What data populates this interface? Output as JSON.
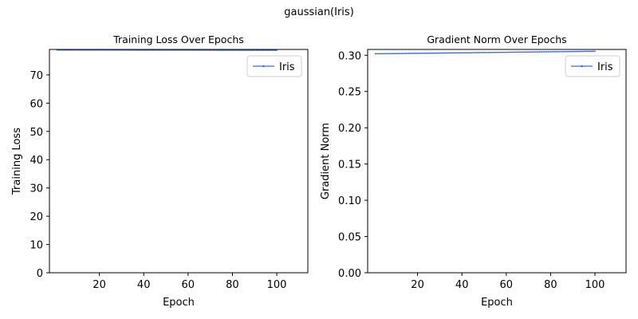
{
  "suptitle": "gaussian(Iris)",
  "chart_data": [
    {
      "type": "line",
      "title": "Training Loss Over Epochs",
      "xlabel": "Epoch",
      "ylabel": "Training Loss",
      "xlim": [
        1,
        100
      ],
      "ylim": [
        0,
        79
      ],
      "xticks": [
        20,
        40,
        60,
        80,
        100
      ],
      "yticks": [
        0,
        10,
        20,
        30,
        40,
        50,
        60,
        70
      ],
      "grid": false,
      "legend": "top-right",
      "series": [
        {
          "name": "Iris",
          "color": "#4169e1",
          "x_start": 1,
          "x_end": 100,
          "y_start": 78.8,
          "y_end": 78.7
        }
      ]
    },
    {
      "type": "line",
      "title": "Gradient Norm Over Epochs",
      "xlabel": "Epoch",
      "ylabel": "Gradient Norm",
      "xlim": [
        1,
        100
      ],
      "ylim": [
        0,
        0.308
      ],
      "xticks": [
        20,
        40,
        60,
        80,
        100
      ],
      "yticks": [
        0.0,
        0.05,
        0.1,
        0.15,
        0.2,
        0.25,
        0.3
      ],
      "ytick_decimals": 2,
      "grid": false,
      "legend": "top-right",
      "series": [
        {
          "name": "Iris",
          "color": "#4169e1",
          "x_start": 1,
          "x_end": 100,
          "y_start": 0.302,
          "y_end": 0.3055
        }
      ]
    }
  ]
}
